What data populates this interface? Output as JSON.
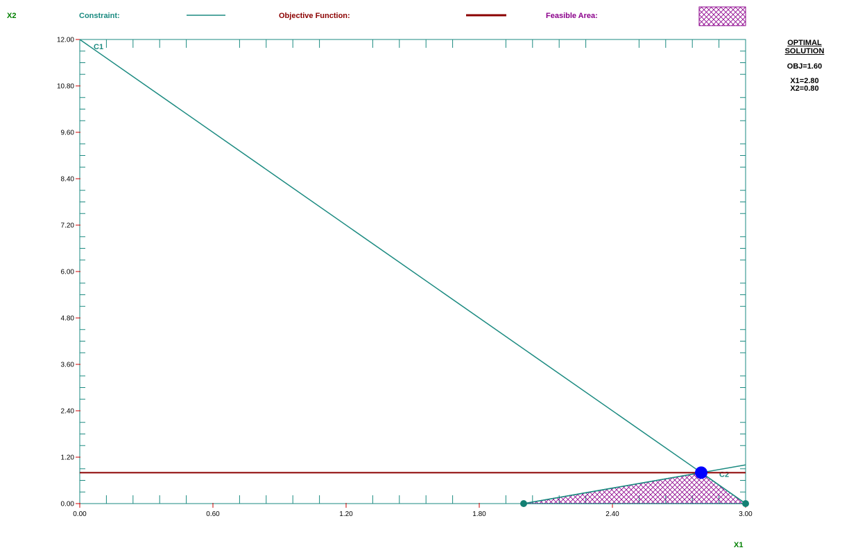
{
  "legend": {
    "constraint_label": "Constraint:",
    "objective_label": "Objective Function:",
    "feasible_label": "Feasible Area:"
  },
  "colors": {
    "constraint": "#1a8a80",
    "objective": "#8b0000",
    "feasible": "#8b008b",
    "axis_label": "#008000",
    "optimum": "#0000ff",
    "tick_red": "#cc0000",
    "vertex": "#138073"
  },
  "axes": {
    "x_label": "X1",
    "y_label": "X2"
  },
  "solution": {
    "heading_line1": "OPTIMAL",
    "heading_line2": "SOLUTION",
    "obj": "OBJ=1.60",
    "x1": "X1=2.80",
    "x2": "X2=0.80"
  },
  "chart_data": {
    "type": "line",
    "xlim": [
      0,
      3
    ],
    "ylim": [
      0,
      12
    ],
    "x_ticks": [
      "0.00",
      "0.60",
      "1.20",
      "1.80",
      "2.40",
      "3.00"
    ],
    "y_ticks": [
      "0.00",
      "1.20",
      "2.40",
      "3.60",
      "4.80",
      "6.00",
      "7.20",
      "8.40",
      "9.60",
      "10.80",
      "12.00"
    ],
    "constraints": [
      {
        "name": "C1",
        "points": [
          [
            0,
            12
          ],
          [
            3,
            0
          ]
        ]
      },
      {
        "name": "C2",
        "points": [
          [
            2,
            0
          ],
          [
            3,
            1
          ]
        ]
      }
    ],
    "objective": {
      "points": [
        [
          0,
          0.8
        ],
        [
          3,
          0.8
        ]
      ]
    },
    "feasible_region": [
      [
        2,
        0
      ],
      [
        2.8,
        0.8
      ],
      [
        3,
        0
      ]
    ],
    "vertices": [
      [
        2,
        0
      ],
      [
        3,
        0
      ]
    ],
    "optimum": {
      "x": 2.8,
      "y": 0.8
    }
  }
}
